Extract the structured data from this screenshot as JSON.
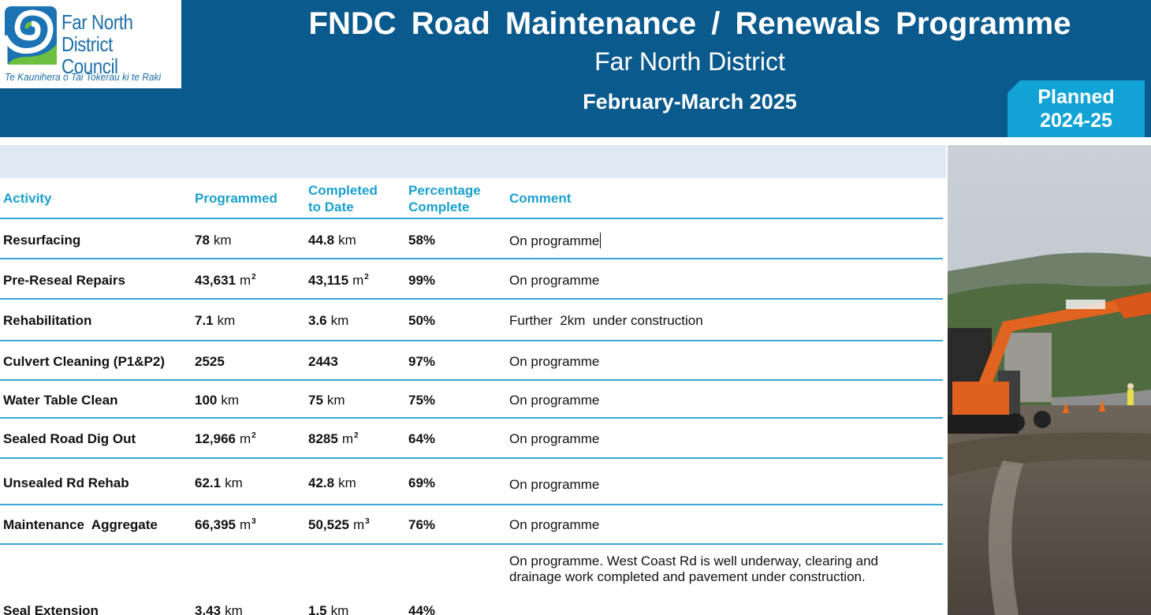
{
  "logo": {
    "name_line1": "Far North",
    "name_line2": "District Council",
    "tagline": "Te Kaunihera o Tai Tokerau ki te Raki"
  },
  "header": {
    "title": "FNDC  Road  Maintenance  /  Renewals  Programme",
    "subtitle": "Far North District",
    "period": "February-March 2025"
  },
  "badge": {
    "line1": "Planned",
    "line2": "2024-25"
  },
  "colors": {
    "header_bg": "#0a5a8e",
    "badge_bg": "#12a3d6",
    "heading_text": "#1aa0cf",
    "band": "#dfe9f4"
  },
  "table": {
    "headers": {
      "activity": "Activity",
      "programmed": "Programmed",
      "completed_1": "Completed",
      "completed_2": "to Date",
      "percentage_1": "Percentage",
      "percentage_2": "Complete",
      "comment": "Comment"
    },
    "rows": [
      {
        "activity": "Resurfacing",
        "prog": "78",
        "prog_unit": "km",
        "prog_sup": "",
        "done": "44.8",
        "done_unit": "km",
        "done_sup": "",
        "pct": "58%",
        "comment": "On programme",
        "comment2": ""
      },
      {
        "activity": "Pre-Reseal Repairs",
        "prog": "43,631",
        "prog_unit": "m",
        "prog_sup": "2",
        "done": "43,115",
        "done_unit": "m",
        "done_sup": "2",
        "pct": "99%",
        "comment": "On programme",
        "comment2": ""
      },
      {
        "activity": "Rehabilitation",
        "prog": "7.1",
        "prog_unit": "km",
        "prog_sup": "",
        "done": "3.6",
        "done_unit": "km",
        "done_sup": "",
        "pct": "50%",
        "comment": "Further  2km  under construction",
        "comment2": ""
      },
      {
        "activity": "Culvert Cleaning (P1&P2)",
        "prog": "2525",
        "prog_unit": "",
        "prog_sup": "",
        "done": "2443",
        "done_unit": "",
        "done_sup": "",
        "pct": "97%",
        "comment": "On programme",
        "comment2": ""
      },
      {
        "activity": "Water Table Clean",
        "prog": "100",
        "prog_unit": "km",
        "prog_sup": "",
        "done": "75",
        "done_unit": "km",
        "done_sup": "",
        "pct": "75%",
        "comment": "On programme",
        "comment2": ""
      },
      {
        "activity": "Sealed Road Dig Out",
        "prog": "12,966",
        "prog_unit": "m",
        "prog_sup": "2",
        "done": "8285",
        "done_unit": "m",
        "done_sup": "2",
        "pct": "64%",
        "comment": "On programme",
        "comment2": ""
      },
      {
        "activity": "Unsealed Rd Rehab",
        "prog": "62.1",
        "prog_unit": "km",
        "prog_sup": "",
        "done": "42.8",
        "done_unit": "km",
        "done_sup": "",
        "pct": "69%",
        "comment": "On programme",
        "comment2": ""
      },
      {
        "activity": "Maintenance  Aggregate",
        "prog": "66,395",
        "prog_unit": "m",
        "prog_sup": "3",
        "done": "50,525",
        "done_unit": "m",
        "done_sup": "3",
        "pct": "76%",
        "comment": "On programme",
        "comment2": ""
      },
      {
        "activity": "Seal Extension",
        "prog": "3.43",
        "prog_unit": "km",
        "prog_sup": "",
        "done": "1.5",
        "done_unit": "km",
        "done_sup": "",
        "pct": "44%",
        "comment": "On programme. West Coast Rd is well underway, clearing and",
        "comment2": "drainage work completed and pavement under construction."
      }
    ]
  }
}
